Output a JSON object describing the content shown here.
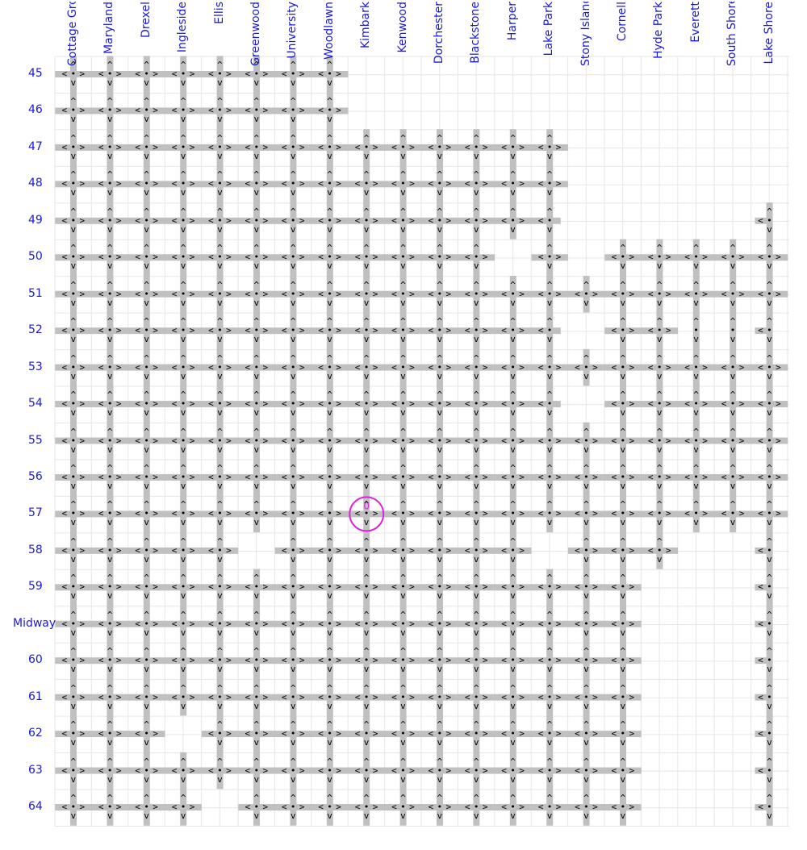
{
  "avenues": [
    "Cottage Grove",
    "Maryland",
    "Drexel",
    "Ingleside",
    "Ellis",
    "Greenwood",
    "University",
    "Woodlawn",
    "Kimbark",
    "Kenwood",
    "Dorchester",
    "Blackstone",
    "Harper",
    "Lake Park",
    "Stony Island",
    "Cornell",
    "Hyde Park",
    "Everett",
    "South Shore",
    "Lake Shore"
  ],
  "streets": [
    "45",
    "46",
    "47",
    "48",
    "49",
    "50",
    "51",
    "52",
    "53",
    "54",
    "55",
    "56",
    "57",
    "58",
    "59",
    "Midway",
    "60",
    "61",
    "62",
    "63",
    "64"
  ],
  "marker": {
    "label": "0",
    "avenue": "Kimbark",
    "street": "57",
    "color": "#e020e0"
  },
  "colors": {
    "label": "#1a1ad6",
    "road": "#c0c0c0",
    "grid": "#e6e6e6",
    "glyph": "#000000"
  },
  "glyphs": {
    "stop": "•",
    "east": ">",
    "west": "<",
    "north": "^",
    "south": "v"
  }
}
